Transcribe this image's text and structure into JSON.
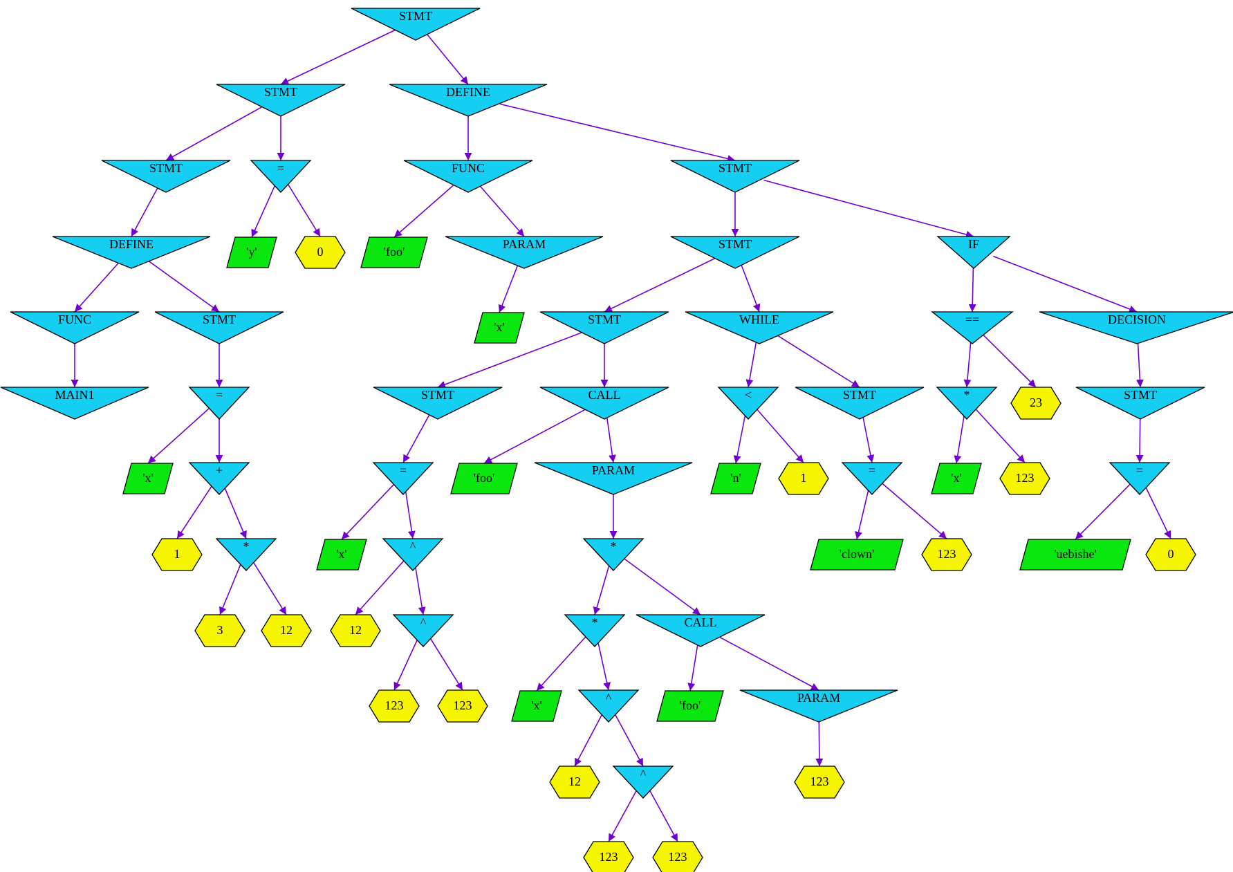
{
  "colors": {
    "op": "#14cff2",
    "id": "#0ae70e",
    "num": "#f5f500",
    "edge": "#7000d0",
    "outline": "#000000"
  },
  "nodes": [
    {
      "id": "n1",
      "label": "STMT",
      "kind": "op"
    },
    {
      "id": "n2",
      "label": "STMT",
      "kind": "op"
    },
    {
      "id": "n3",
      "label": "DEFINE",
      "kind": "op"
    },
    {
      "id": "n4",
      "label": "STMT",
      "kind": "op"
    },
    {
      "id": "n5",
      "label": "=",
      "kind": "op"
    },
    {
      "id": "n6",
      "label": "FUNC",
      "kind": "op"
    },
    {
      "id": "n7",
      "label": "STMT",
      "kind": "op"
    },
    {
      "id": "n8",
      "label": "DEFINE",
      "kind": "op"
    },
    {
      "id": "n9",
      "label": "'y'",
      "kind": "id"
    },
    {
      "id": "n10",
      "label": "0",
      "kind": "num"
    },
    {
      "id": "n11",
      "label": "'foo'",
      "kind": "id"
    },
    {
      "id": "n12",
      "label": "PARAM",
      "kind": "op"
    },
    {
      "id": "n13",
      "label": "STMT",
      "kind": "op"
    },
    {
      "id": "n14",
      "label": "IF",
      "kind": "op"
    },
    {
      "id": "n15",
      "label": "FUNC",
      "kind": "op"
    },
    {
      "id": "n16",
      "label": "STMT",
      "kind": "op"
    },
    {
      "id": "n17",
      "label": "'x'",
      "kind": "id"
    },
    {
      "id": "n18",
      "label": "STMT",
      "kind": "op"
    },
    {
      "id": "n19",
      "label": "WHILE",
      "kind": "op"
    },
    {
      "id": "n20",
      "label": "==",
      "kind": "op"
    },
    {
      "id": "n21",
      "label": "DECISION",
      "kind": "op"
    },
    {
      "id": "n22",
      "label": "MAIN1",
      "kind": "op"
    },
    {
      "id": "n23",
      "label": "=",
      "kind": "op"
    },
    {
      "id": "n24",
      "label": "STMT",
      "kind": "op"
    },
    {
      "id": "n25",
      "label": "CALL",
      "kind": "op"
    },
    {
      "id": "n26",
      "label": "<",
      "kind": "op"
    },
    {
      "id": "n27",
      "label": "STMT",
      "kind": "op"
    },
    {
      "id": "n28",
      "label": "*",
      "kind": "op"
    },
    {
      "id": "n29",
      "label": "23",
      "kind": "num"
    },
    {
      "id": "n30",
      "label": "STMT",
      "kind": "op"
    },
    {
      "id": "n31",
      "label": "'x'",
      "kind": "id"
    },
    {
      "id": "n32",
      "label": "+",
      "kind": "op"
    },
    {
      "id": "n33",
      "label": "=",
      "kind": "op"
    },
    {
      "id": "n34",
      "label": "'foo'",
      "kind": "id"
    },
    {
      "id": "n35",
      "label": "PARAM",
      "kind": "op"
    },
    {
      "id": "n36",
      "label": "'n'",
      "kind": "id"
    },
    {
      "id": "n37",
      "label": "1",
      "kind": "num"
    },
    {
      "id": "n38",
      "label": "=",
      "kind": "op"
    },
    {
      "id": "n39",
      "label": "'x'",
      "kind": "id"
    },
    {
      "id": "n40",
      "label": "123",
      "kind": "num"
    },
    {
      "id": "n41",
      "label": "=",
      "kind": "op"
    },
    {
      "id": "n42",
      "label": "1",
      "kind": "num"
    },
    {
      "id": "n43",
      "label": "*",
      "kind": "op"
    },
    {
      "id": "n44",
      "label": "'x'",
      "kind": "id"
    },
    {
      "id": "n45",
      "label": "^",
      "kind": "op"
    },
    {
      "id": "n46",
      "label": "*",
      "kind": "op"
    },
    {
      "id": "n47",
      "label": "'clown'",
      "kind": "id"
    },
    {
      "id": "n48",
      "label": "123",
      "kind": "num"
    },
    {
      "id": "n49",
      "label": "'uebishe'",
      "kind": "id"
    },
    {
      "id": "n50",
      "label": "0",
      "kind": "num"
    },
    {
      "id": "n51",
      "label": "3",
      "kind": "num"
    },
    {
      "id": "n52",
      "label": "12",
      "kind": "num"
    },
    {
      "id": "n53",
      "label": "12",
      "kind": "num"
    },
    {
      "id": "n54",
      "label": "^",
      "kind": "op"
    },
    {
      "id": "n55",
      "label": "*",
      "kind": "op"
    },
    {
      "id": "n56",
      "label": "CALL",
      "kind": "op"
    },
    {
      "id": "n57",
      "label": "123",
      "kind": "num"
    },
    {
      "id": "n58",
      "label": "123",
      "kind": "num"
    },
    {
      "id": "n59",
      "label": "'x'",
      "kind": "id"
    },
    {
      "id": "n60",
      "label": "^",
      "kind": "op"
    },
    {
      "id": "n61",
      "label": "'foo'",
      "kind": "id"
    },
    {
      "id": "n62",
      "label": "PARAM",
      "kind": "op"
    },
    {
      "id": "n63",
      "label": "12",
      "kind": "num"
    },
    {
      "id": "n64",
      "label": "^",
      "kind": "op"
    },
    {
      "id": "n65",
      "label": "123",
      "kind": "num"
    },
    {
      "id": "n66",
      "label": "123",
      "kind": "num"
    },
    {
      "id": "n67",
      "label": "123",
      "kind": "num"
    }
  ],
  "edges": [
    [
      "n1",
      "n2"
    ],
    [
      "n1",
      "n8"
    ],
    [
      "n2",
      "n4"
    ],
    [
      "n2",
      "n5"
    ],
    [
      "n4",
      "n3"
    ],
    [
      "n3",
      "n6"
    ],
    [
      "n3",
      "n7"
    ],
    [
      "n6",
      "n22"
    ],
    [
      "n7",
      "n23"
    ],
    [
      "n23",
      "n31"
    ],
    [
      "n23",
      "n32"
    ],
    [
      "n32",
      "n42"
    ],
    [
      "n32",
      "n43"
    ],
    [
      "n43",
      "n51"
    ],
    [
      "n43",
      "n52"
    ],
    [
      "n5",
      "n9"
    ],
    [
      "n5",
      "n10"
    ],
    [
      "n8",
      "n15"
    ],
    [
      "n8",
      "n13"
    ],
    [
      "n15",
      "n11"
    ],
    [
      "n15",
      "n12"
    ],
    [
      "n12",
      "n17"
    ],
    [
      "n13",
      "n16"
    ],
    [
      "n13",
      "n14"
    ],
    [
      "n16",
      "n18"
    ],
    [
      "n16",
      "n19"
    ],
    [
      "n18",
      "n24"
    ],
    [
      "n18",
      "n25"
    ],
    [
      "n24",
      "n33"
    ],
    [
      "n33",
      "n39"
    ],
    [
      "n33",
      "n45"
    ],
    [
      "n45",
      "n53"
    ],
    [
      "n45",
      "n54"
    ],
    [
      "n54",
      "n57"
    ],
    [
      "n54",
      "n58"
    ],
    [
      "n25",
      "n34"
    ],
    [
      "n25",
      "n35"
    ],
    [
      "n35",
      "n46"
    ],
    [
      "n46",
      "n55"
    ],
    [
      "n46",
      "n56"
    ],
    [
      "n55",
      "n59"
    ],
    [
      "n55",
      "n60"
    ],
    [
      "n60",
      "n63"
    ],
    [
      "n60",
      "n64"
    ],
    [
      "n64",
      "n65"
    ],
    [
      "n64",
      "n66"
    ],
    [
      "n56",
      "n61"
    ],
    [
      "n56",
      "n62"
    ],
    [
      "n62",
      "n67"
    ],
    [
      "n19",
      "n26"
    ],
    [
      "n19",
      "n27"
    ],
    [
      "n26",
      "n36"
    ],
    [
      "n26",
      "n37"
    ],
    [
      "n27",
      "n38"
    ],
    [
      "n38",
      "n47"
    ],
    [
      "n38",
      "n48"
    ],
    [
      "n14",
      "n20"
    ],
    [
      "n14",
      "n21"
    ],
    [
      "n20",
      "n28"
    ],
    [
      "n20",
      "n29"
    ],
    [
      "n28",
      "n44"
    ],
    [
      "n28",
      "n40"
    ],
    [
      "n21",
      "n30"
    ],
    [
      "n30",
      "n41"
    ],
    [
      "n41",
      "n49"
    ],
    [
      "n41",
      "n50"
    ]
  ]
}
